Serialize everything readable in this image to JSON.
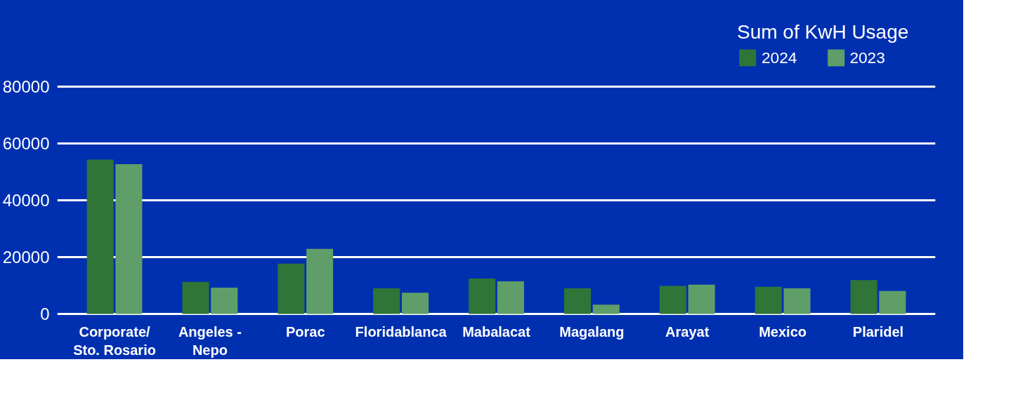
{
  "chart_data": {
    "type": "bar",
    "legend_title": "Sum of KwH Usage",
    "categories": [
      "Corporate/\nSto. Rosario",
      "Angeles -\nNepo",
      "Porac",
      "Floridablanca",
      "Mabalacat",
      "Magalang",
      "Arayat",
      "Mexico",
      "Plaridel"
    ],
    "series": [
      {
        "name": "2024",
        "color": "#2f7538",
        "values": [
          54300,
          11300,
          17700,
          9000,
          12500,
          9000,
          9900,
          9600,
          11900
        ]
      },
      {
        "name": "2023",
        "color": "#5f9e68",
        "values": [
          52700,
          9300,
          22900,
          7500,
          11500,
          3300,
          10300,
          9000,
          8100
        ]
      }
    ],
    "ylim": [
      0,
      80000
    ],
    "yticks": [
      0,
      20000,
      40000,
      60000,
      80000
    ],
    "grid": "y",
    "legend": "top right"
  }
}
